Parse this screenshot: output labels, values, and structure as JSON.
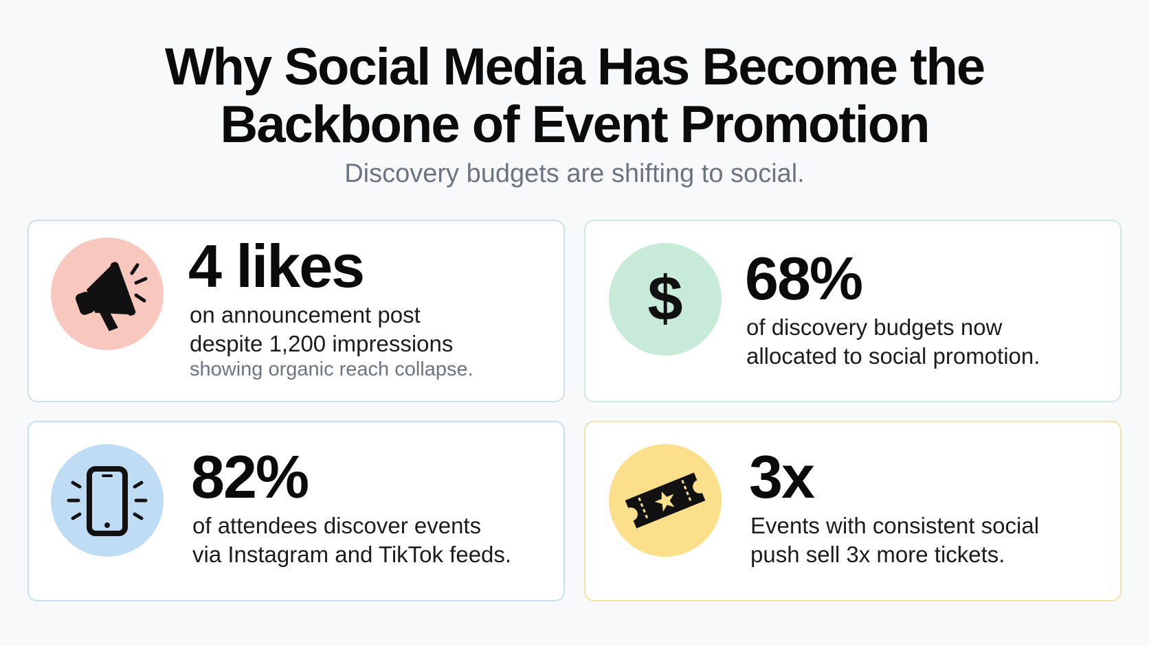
{
  "header": {
    "title_line1": "Why Social Media Has Become the",
    "title_line2": "Backbone of Event Promotion",
    "subtitle": "Discovery budgets are shifting to social."
  },
  "cards": [
    {
      "stat": "4 likes",
      "line1": "on announcement post",
      "line2": "despite 1,200 impressions",
      "note": "showing organic reach collapse.",
      "icon": "megaphone-icon",
      "circle_color": "#f8c7bd"
    },
    {
      "stat": "68%",
      "line1": "of discovery budgets now",
      "line2": "allocated to social promotion.",
      "icon": "dollar-icon",
      "circle_color": "#c8ebd9"
    },
    {
      "stat": "82%",
      "line1": "of attendees discover events",
      "line2": "via Instagram and TikTok feeds.",
      "icon": "smartphone-icon",
      "circle_color": "#bfdcf5"
    },
    {
      "stat": "3x",
      "line1": "Events with consistent social",
      "line2": "push sell 3x more tickets.",
      "icon": "ticket-icon",
      "circle_color": "#fbdf8a"
    }
  ]
}
